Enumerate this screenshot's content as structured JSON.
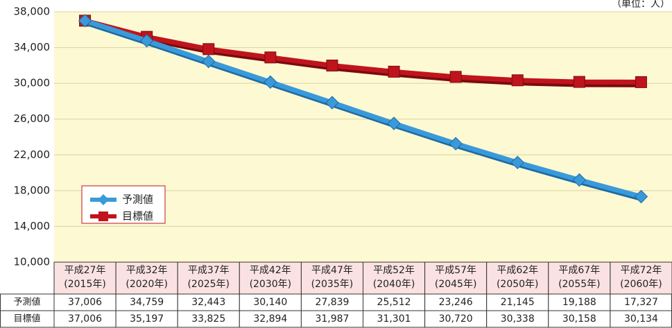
{
  "chart_data": {
    "type": "line",
    "unit_note": "（単位：人）",
    "categories": [
      [
        "平成27年",
        "(2015年)"
      ],
      [
        "平成32年",
        "(2020年)"
      ],
      [
        "平成37年",
        "(2025年)"
      ],
      [
        "平成42年",
        "(2030年)"
      ],
      [
        "平成47年",
        "(2035年)"
      ],
      [
        "平成52年",
        "(2040年)"
      ],
      [
        "平成57年",
        "(2045年)"
      ],
      [
        "平成62年",
        "(2050年)"
      ],
      [
        "平成67年",
        "(2055年)"
      ],
      [
        "平成72年",
        "(2060年)"
      ]
    ],
    "series": [
      {
        "name": "予測値",
        "color": "#3a9ad9",
        "marker": "diamond",
        "values": [
          37006,
          34759,
          32443,
          30140,
          27839,
          25512,
          23246,
          21145,
          19188,
          17327
        ],
        "value_labels": [
          "37,006",
          "34,759",
          "32,443",
          "30,140",
          "27,839",
          "25,512",
          "23,246",
          "21,145",
          "19,188",
          "17,327"
        ]
      },
      {
        "name": "目標値",
        "color": "#c0141c",
        "marker": "square",
        "values": [
          37006,
          35197,
          33825,
          32894,
          31987,
          31301,
          30720,
          30338,
          30158,
          30134
        ],
        "value_labels": [
          "37,006",
          "35,197",
          "33,825",
          "32,894",
          "31,987",
          "31,301",
          "30,720",
          "30,338",
          "30,158",
          "30,134"
        ]
      }
    ],
    "ylim": [
      10000,
      38000
    ],
    "yticks": [
      {
        "value": 10000,
        "label": "10,000"
      },
      {
        "value": 14000,
        "label": "14,000"
      },
      {
        "value": 18000,
        "label": "18,000"
      },
      {
        "value": 22000,
        "label": "22,000"
      },
      {
        "value": 26000,
        "label": "26,000"
      },
      {
        "value": 30000,
        "label": "30,000"
      },
      {
        "value": 34000,
        "label": "34,000"
      },
      {
        "value": 38000,
        "label": "38,000"
      }
    ],
    "grid": true
  }
}
